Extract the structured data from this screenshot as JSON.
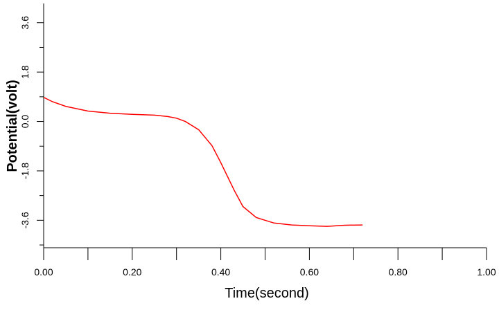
{
  "chart_data": {
    "type": "line",
    "x_label": "Time(second)",
    "y_label": "Potential(volt)",
    "x": [
      0,
      0.02,
      0.05,
      0.1,
      0.15,
      0.2,
      0.25,
      0.28,
      0.3,
      0.32,
      0.35,
      0.38,
      0.4,
      0.43,
      0.45,
      0.48,
      0.52,
      0.56,
      0.6,
      0.64,
      0.68,
      0.72
    ],
    "series": [
      {
        "color": "#ff0000",
        "values": [
          0.88,
          0.72,
          0.55,
          0.38,
          0.3,
          0.26,
          0.23,
          0.18,
          0.12,
          0.0,
          -0.3,
          -0.88,
          -1.5,
          -2.5,
          -3.1,
          -3.5,
          -3.7,
          -3.77,
          -3.8,
          -3.82,
          -3.78,
          -3.77
        ]
      }
    ],
    "xlim": [
      0,
      1
    ],
    "xticks": [
      {
        "value": 0,
        "label": "0.00"
      },
      {
        "value": 0.2,
        "label": "0.20"
      },
      {
        "value": 0.4,
        "label": "0.40"
      },
      {
        "value": 0.6,
        "label": "0.60"
      },
      {
        "value": 0.8,
        "label": "0.80"
      },
      {
        "value": 1,
        "label": "1.00"
      }
    ],
    "xminorticks": [
      0.1,
      0.3,
      0.5,
      0.7,
      0.9
    ],
    "ylim": [
      -4.6,
      4.3
    ],
    "yticks": [
      -3.6,
      -1.8,
      {
        "value": 0,
        "label": "0.0"
      },
      1.8,
      3.6
    ],
    "yminorticks": [
      -4.5,
      -2.7,
      -0.9,
      0.9,
      2.7
    ]
  }
}
